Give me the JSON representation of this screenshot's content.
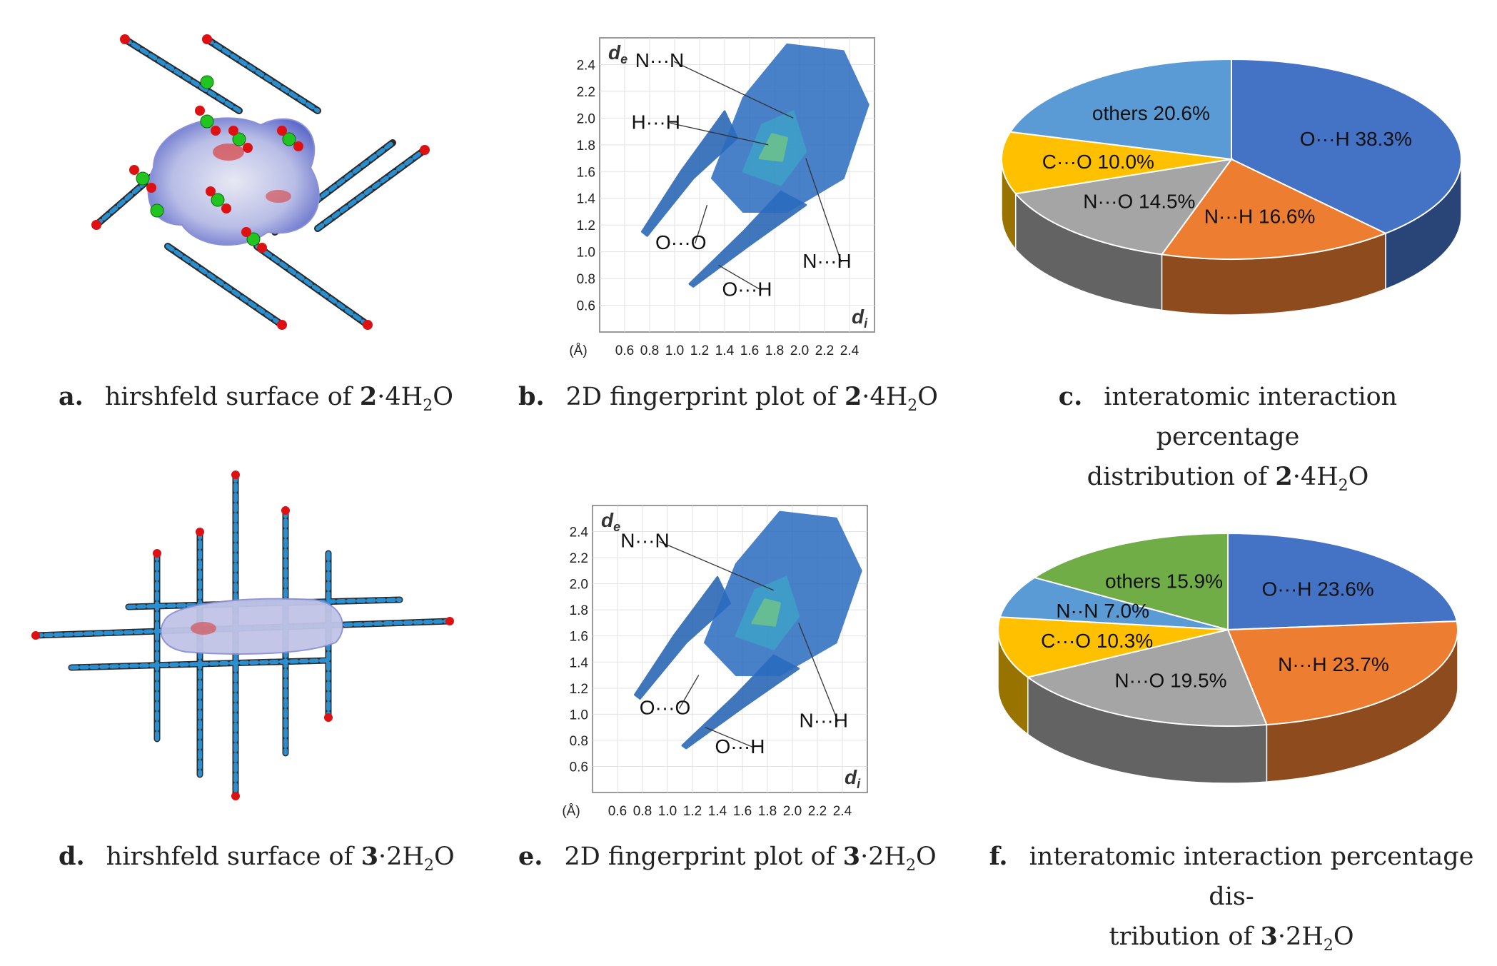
{
  "captions": {
    "a": {
      "letter": "a.",
      "text": "hirshfeld surface of ",
      "num": "2",
      "formula_pre": "4H",
      "sub": "2",
      "formula_post": "O"
    },
    "b": {
      "letter": "b.",
      "text": "2D fingerprint plot of ",
      "num": "2",
      "formula_pre": "4H",
      "sub": "2",
      "formula_post": "O"
    },
    "c": {
      "letter": "c.",
      "line1": "interatomic interaction percentage",
      "line2": "distribution of ",
      "num": "2",
      "formula_pre": "4H",
      "sub": "2",
      "formula_post": "O"
    },
    "d": {
      "letter": "d.",
      "text": "hirshfeld surface of ",
      "num": "3",
      "formula_pre": "2H",
      "sub": "2",
      "formula_post": "O"
    },
    "e": {
      "letter": "e.",
      "text": "2D fingerprint plot of ",
      "num": "3",
      "formula_pre": "2H",
      "sub": "2",
      "formula_post": "O"
    },
    "f": {
      "letter": "f.",
      "line1": "interatomic interaction percentage dis-",
      "line2": "tribution of ",
      "num": "3",
      "formula_pre": "2H",
      "sub": "2",
      "formula_post": "O"
    }
  },
  "chart_data": [
    {
      "id": "b",
      "type": "scatter",
      "ylabel": "de",
      "xlabel": "di",
      "unit_label": "(Å)",
      "xticks": [
        "0.6",
        "0.8",
        "1.0",
        "1.2",
        "1.4",
        "1.6",
        "1.8",
        "2.0",
        "2.2",
        "2.4"
      ],
      "yticks": [
        "0.6",
        "0.8",
        "1.0",
        "1.2",
        "1.4",
        "1.6",
        "1.8",
        "2.0",
        "2.2",
        "2.4"
      ],
      "xlim": [
        0.4,
        2.6
      ],
      "ylim": [
        0.4,
        2.6
      ],
      "grid": true,
      "annotations": [
        {
          "label": "N···N",
          "text_at": [
            0.88,
            2.38
          ],
          "point": [
            1.95,
            2.0
          ]
        },
        {
          "label": "H···H",
          "text_at": [
            0.85,
            1.92
          ],
          "point": [
            1.75,
            1.8
          ]
        },
        {
          "label": "O···O",
          "text_at": [
            1.05,
            1.02
          ],
          "point": [
            1.26,
            1.35
          ]
        },
        {
          "label": "O···H",
          "text_at": [
            1.58,
            0.67
          ],
          "point": [
            1.35,
            0.9
          ]
        },
        {
          "label": "N···H",
          "text_at": [
            2.22,
            0.88
          ],
          "point": [
            2.05,
            1.7
          ]
        }
      ]
    },
    {
      "id": "c",
      "type": "pie",
      "slices": [
        {
          "label": "O···H 38.3%",
          "value": 38.3,
          "color": "#4472c4"
        },
        {
          "label": "N···H 16.6%",
          "value": 16.6,
          "color": "#ed7d31"
        },
        {
          "label": "N···O 14.5%",
          "value": 14.5,
          "color": "#a5a5a5"
        },
        {
          "label": "C···O 10.0%",
          "value": 10.0,
          "color": "#ffc000"
        },
        {
          "label": "others 20.6%",
          "value": 20.6,
          "color": "#5b9bd5"
        }
      ]
    },
    {
      "id": "e",
      "type": "scatter",
      "ylabel": "de",
      "xlabel": "di",
      "unit_label": "(Å)",
      "xticks": [
        "0.6",
        "0.8",
        "1.0",
        "1.2",
        "1.4",
        "1.6",
        "1.8",
        "2.0",
        "2.2",
        "2.4"
      ],
      "yticks": [
        "0.6",
        "0.8",
        "1.0",
        "1.2",
        "1.4",
        "1.6",
        "1.8",
        "2.0",
        "2.2",
        "2.4"
      ],
      "xlim": [
        0.4,
        2.6
      ],
      "ylim": [
        0.4,
        2.6
      ],
      "grid": true,
      "annotations": [
        {
          "label": "N···N",
          "text_at": [
            0.82,
            2.28
          ],
          "point": [
            1.85,
            1.95
          ]
        },
        {
          "label": "O···O",
          "text_at": [
            0.98,
            1.0
          ],
          "point": [
            1.25,
            1.3
          ]
        },
        {
          "label": "O···H",
          "text_at": [
            1.58,
            0.7
          ],
          "point": [
            1.3,
            0.9
          ]
        },
        {
          "label": "N···H",
          "text_at": [
            2.25,
            0.9
          ],
          "point": [
            2.05,
            1.7
          ]
        }
      ]
    },
    {
      "id": "f",
      "type": "pie",
      "slices": [
        {
          "label": "O···H 23.6%",
          "value": 23.6,
          "color": "#4472c4"
        },
        {
          "label": "N···H 23.7%",
          "value": 23.7,
          "color": "#ed7d31"
        },
        {
          "label": "N···O 19.5%",
          "value": 19.5,
          "color": "#a5a5a5"
        },
        {
          "label": "C···O 10.3%",
          "value": 10.3,
          "color": "#ffc000"
        },
        {
          "label": "N··N 7.0%",
          "value": 7.0,
          "color": "#5b9bd5"
        },
        {
          "label": "others 15.9%",
          "value": 15.9,
          "color": "#70ad47"
        }
      ]
    }
  ]
}
